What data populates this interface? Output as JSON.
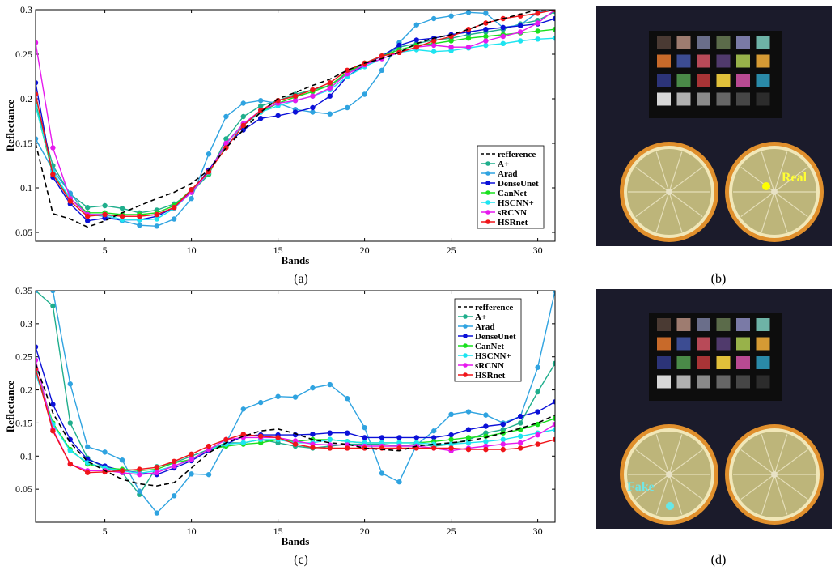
{
  "chart_data": [
    {
      "type": "line",
      "panel_label": "(a)",
      "xlabel": "Bands",
      "ylabel": "Reflectance",
      "xlim": [
        1,
        31
      ],
      "ylim": [
        0.04,
        0.3
      ],
      "xticks": [
        5,
        10,
        15,
        20,
        25,
        30
      ],
      "yticks": [
        0.05,
        0.1,
        0.15,
        0.2,
        0.25,
        0.3
      ],
      "ytick_labels": [
        "0.05",
        "0.1",
        "0.15",
        "0.2",
        "0.25",
        "0.3"
      ],
      "legend_position": "right-center",
      "x": [
        1,
        2,
        3,
        4,
        5,
        6,
        7,
        8,
        9,
        10,
        11,
        12,
        13,
        14,
        15,
        16,
        17,
        18,
        19,
        20,
        21,
        22,
        23,
        24,
        25,
        26,
        27,
        28,
        29,
        30,
        31
      ],
      "series": [
        {
          "name": "refference",
          "color": "#000000",
          "dashed": true,
          "marker": false,
          "values": [
            0.15,
            0.071,
            0.065,
            0.056,
            0.063,
            0.072,
            0.08,
            0.088,
            0.095,
            0.105,
            0.12,
            0.145,
            0.165,
            0.185,
            0.2,
            0.207,
            0.215,
            0.222,
            0.232,
            0.24,
            0.245,
            0.252,
            0.262,
            0.268,
            0.272,
            0.278,
            0.285,
            0.29,
            0.295,
            0.3,
            0.3
          ]
        },
        {
          "name": "A+",
          "color": "#1fae8c",
          "values": [
            0.195,
            0.125,
            0.093,
            0.078,
            0.08,
            0.077,
            0.072,
            0.075,
            0.082,
            0.095,
            0.115,
            0.155,
            0.18,
            0.192,
            0.198,
            0.205,
            0.21,
            0.215,
            0.228,
            0.24,
            0.248,
            0.258,
            0.262,
            0.266,
            0.268,
            0.272,
            0.275,
            0.278,
            0.284,
            0.288,
            0.298
          ]
        },
        {
          "name": "Arad",
          "color": "#2fa3e0",
          "values": [
            0.155,
            0.12,
            0.094,
            0.07,
            0.068,
            0.063,
            0.058,
            0.057,
            0.065,
            0.088,
            0.138,
            0.18,
            0.195,
            0.198,
            0.195,
            0.188,
            0.185,
            0.183,
            0.19,
            0.205,
            0.232,
            0.263,
            0.283,
            0.29,
            0.293,
            0.297,
            0.296,
            0.28,
            0.283,
            0.297,
            0.3
          ]
        },
        {
          "name": "DenseUnet",
          "color": "#0b10d8",
          "values": [
            0.218,
            0.112,
            0.082,
            0.063,
            0.066,
            0.064,
            0.064,
            0.068,
            0.078,
            0.096,
            0.12,
            0.148,
            0.165,
            0.178,
            0.181,
            0.185,
            0.19,
            0.203,
            0.225,
            0.238,
            0.248,
            0.26,
            0.266,
            0.268,
            0.272,
            0.275,
            0.278,
            0.28,
            0.282,
            0.284,
            0.29
          ]
        },
        {
          "name": "CanNet",
          "color": "#19e01e",
          "values": [
            0.193,
            0.115,
            0.088,
            0.072,
            0.072,
            0.07,
            0.07,
            0.072,
            0.08,
            0.098,
            0.116,
            0.15,
            0.172,
            0.185,
            0.195,
            0.202,
            0.208,
            0.215,
            0.23,
            0.24,
            0.248,
            0.255,
            0.26,
            0.262,
            0.265,
            0.268,
            0.27,
            0.272,
            0.274,
            0.276,
            0.278
          ]
        },
        {
          "name": "HSCNN+",
          "color": "#1de4f0",
          "values": [
            0.192,
            0.118,
            0.088,
            0.07,
            0.07,
            0.064,
            0.064,
            0.065,
            0.077,
            0.095,
            0.117,
            0.15,
            0.17,
            0.185,
            0.192,
            0.198,
            0.203,
            0.21,
            0.225,
            0.236,
            0.245,
            0.252,
            0.255,
            0.253,
            0.254,
            0.257,
            0.26,
            0.262,
            0.265,
            0.267,
            0.268
          ]
        },
        {
          "name": "sRCNN",
          "color": "#e619ee",
          "values": [
            0.263,
            0.145,
            0.088,
            0.07,
            0.07,
            0.068,
            0.068,
            0.07,
            0.078,
            0.095,
            0.118,
            0.15,
            0.172,
            0.187,
            0.195,
            0.198,
            0.203,
            0.212,
            0.228,
            0.238,
            0.245,
            0.252,
            0.258,
            0.26,
            0.258,
            0.258,
            0.265,
            0.27,
            0.275,
            0.285,
            0.3
          ]
        },
        {
          "name": "HSRnet",
          "color": "#f0151a",
          "values": [
            0.205,
            0.115,
            0.085,
            0.068,
            0.07,
            0.068,
            0.068,
            0.07,
            0.078,
            0.098,
            0.118,
            0.145,
            0.17,
            0.187,
            0.198,
            0.203,
            0.21,
            0.218,
            0.232,
            0.24,
            0.248,
            0.252,
            0.258,
            0.265,
            0.27,
            0.278,
            0.285,
            0.29,
            0.293,
            0.296,
            0.3
          ]
        }
      ]
    },
    {
      "type": "line",
      "panel_label": "(c)",
      "xlabel": "Bands",
      "ylabel": "Reflectance",
      "xlim": [
        1,
        31
      ],
      "ylim": [
        0,
        0.35
      ],
      "xticks": [
        5,
        10,
        15,
        20,
        25,
        30
      ],
      "yticks": [
        0.05,
        0.1,
        0.15,
        0.2,
        0.25,
        0.3,
        0.35
      ],
      "ytick_labels": [
        "0.05",
        "0.1",
        "0.15",
        "0.2",
        "0.25",
        "0.3",
        "0.35"
      ],
      "legend_position": "top-right",
      "x": [
        1,
        2,
        3,
        4,
        5,
        6,
        7,
        8,
        9,
        10,
        11,
        12,
        13,
        14,
        15,
        16,
        17,
        18,
        19,
        20,
        21,
        22,
        23,
        24,
        25,
        26,
        27,
        28,
        29,
        30,
        31
      ],
      "series": [
        {
          "name": "refference",
          "color": "#000000",
          "dashed": true,
          "marker": false,
          "values": [
            0.24,
            0.165,
            0.12,
            0.092,
            0.078,
            0.065,
            0.058,
            0.055,
            0.06,
            0.082,
            0.105,
            0.12,
            0.13,
            0.138,
            0.141,
            0.134,
            0.125,
            0.12,
            0.118,
            0.112,
            0.11,
            0.108,
            0.115,
            0.118,
            0.12,
            0.123,
            0.128,
            0.135,
            0.142,
            0.15,
            0.162
          ]
        },
        {
          "name": "A+",
          "color": "#1fae8c",
          "values": [
            0.35,
            0.327,
            0.15,
            0.097,
            0.082,
            0.075,
            0.042,
            0.084,
            0.09,
            0.1,
            0.11,
            0.12,
            0.12,
            0.125,
            0.12,
            0.115,
            0.112,
            0.115,
            0.118,
            0.118,
            0.118,
            0.115,
            0.118,
            0.115,
            0.118,
            0.125,
            0.135,
            0.14,
            0.15,
            0.197,
            0.24
          ]
        },
        {
          "name": "Arad",
          "color": "#2fa3e0",
          "values": [
            0.35,
            0.35,
            0.209,
            0.114,
            0.106,
            0.094,
            0.047,
            0.014,
            0.04,
            0.073,
            0.072,
            0.12,
            0.171,
            0.181,
            0.19,
            0.189,
            0.203,
            0.208,
            0.187,
            0.143,
            0.074,
            0.061,
            0.117,
            0.138,
            0.163,
            0.167,
            0.162,
            0.15,
            0.16,
            0.234,
            0.35
          ]
        },
        {
          "name": "DenseUnet",
          "color": "#0b10d8",
          "values": [
            0.265,
            0.178,
            0.125,
            0.095,
            0.085,
            0.078,
            0.075,
            0.072,
            0.082,
            0.093,
            0.108,
            0.118,
            0.13,
            0.132,
            0.132,
            0.132,
            0.133,
            0.135,
            0.135,
            0.128,
            0.128,
            0.128,
            0.128,
            0.128,
            0.132,
            0.14,
            0.145,
            0.148,
            0.16,
            0.167,
            0.182
          ]
        },
        {
          "name": "CanNet",
          "color": "#19e01e",
          "values": [
            0.23,
            0.15,
            0.11,
            0.088,
            0.082,
            0.08,
            0.078,
            0.08,
            0.09,
            0.095,
            0.11,
            0.115,
            0.118,
            0.12,
            0.125,
            0.122,
            0.125,
            0.125,
            0.122,
            0.12,
            0.12,
            0.12,
            0.12,
            0.122,
            0.125,
            0.128,
            0.13,
            0.135,
            0.14,
            0.148,
            0.157
          ]
        },
        {
          "name": "HSCNN+",
          "color": "#1de4f0",
          "values": [
            0.225,
            0.148,
            0.108,
            0.09,
            0.082,
            0.078,
            0.074,
            0.078,
            0.085,
            0.095,
            0.11,
            0.118,
            0.12,
            0.125,
            0.125,
            0.12,
            0.12,
            0.125,
            0.122,
            0.12,
            0.12,
            0.12,
            0.12,
            0.118,
            0.118,
            0.12,
            0.122,
            0.125,
            0.13,
            0.135,
            0.14
          ]
        },
        {
          "name": "sRCNN",
          "color": "#e619ee",
          "values": [
            0.245,
            0.14,
            0.088,
            0.078,
            0.078,
            0.075,
            0.072,
            0.075,
            0.085,
            0.095,
            0.11,
            0.125,
            0.128,
            0.128,
            0.128,
            0.123,
            0.118,
            0.117,
            0.117,
            0.115,
            0.115,
            0.115,
            0.115,
            0.112,
            0.108,
            0.112,
            0.115,
            0.118,
            0.12,
            0.132,
            0.148
          ]
        },
        {
          "name": "HSRnet",
          "color": "#f0151a",
          "values": [
            0.232,
            0.138,
            0.088,
            0.075,
            0.076,
            0.078,
            0.08,
            0.083,
            0.092,
            0.103,
            0.115,
            0.125,
            0.133,
            0.13,
            0.128,
            0.118,
            0.113,
            0.112,
            0.112,
            0.112,
            0.112,
            0.112,
            0.112,
            0.112,
            0.112,
            0.11,
            0.11,
            0.11,
            0.112,
            0.118,
            0.125
          ]
        }
      ]
    }
  ],
  "photos": [
    {
      "panel_label": "(b)",
      "point_label": "Real",
      "point_color": "#ffff00",
      "label_color": "#ffff33"
    },
    {
      "panel_label": "(d)",
      "point_label": "Fake",
      "point_color": "#66e8e8",
      "label_color": "#70e6e6"
    }
  ],
  "color_checker": [
    "#4a3a33",
    "#9e7c70",
    "#6a6e8a",
    "#5b6b4a",
    "#7a7aa6",
    "#6eb3a6",
    "#c86a2a",
    "#3c4c92",
    "#b84a58",
    "#503a6c",
    "#98b24a",
    "#d59a34",
    "#2c3478",
    "#4a8a48",
    "#a83436",
    "#e0c03a",
    "#b84a92",
    "#2a8aa8",
    "#d8d8d8",
    "#b0b0b0",
    "#8a8a8a",
    "#666666",
    "#464646",
    "#2c2c2c"
  ]
}
